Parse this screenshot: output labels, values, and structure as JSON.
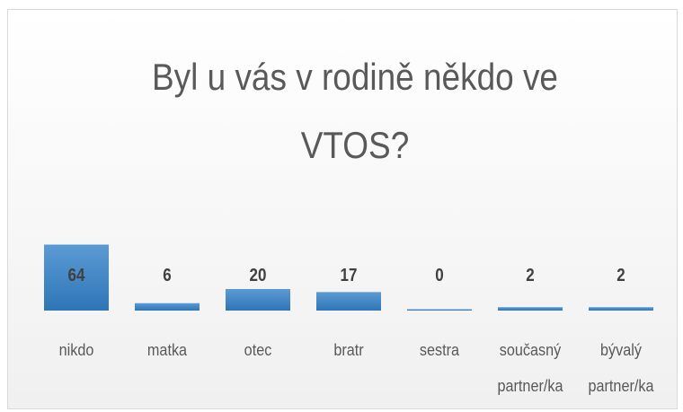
{
  "chart_data": {
    "type": "bar",
    "title": "Byl u vás v rodině někdo ve VTOS?",
    "categories": [
      "nikdo",
      "matka",
      "otec",
      "bratr",
      "sestra",
      "současný partner/ka",
      "bývalý partner/ka"
    ],
    "values": [
      64,
      6,
      20,
      17,
      0,
      2,
      2
    ],
    "color": "#4a8fd0"
  }
}
